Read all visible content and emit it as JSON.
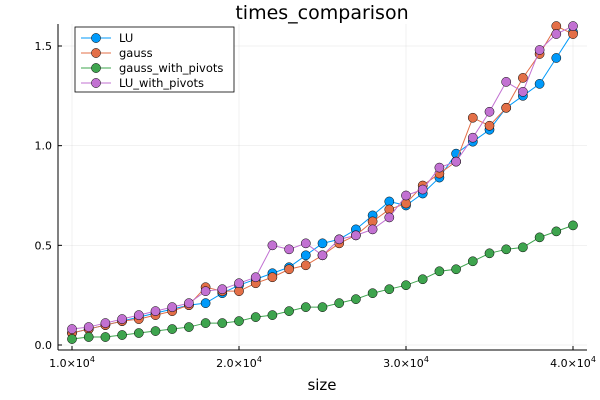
{
  "chart_data": {
    "type": "line",
    "title": "times_comparison",
    "xlabel": "size",
    "ylabel": "",
    "xlim": [
      10000,
      40000
    ],
    "ylim": [
      0,
      1.6
    ],
    "grid": true,
    "legend_position": "top-left",
    "x_ticks": [
      {
        "value": 10000,
        "mantissa": "1.0×10",
        "exp": "4"
      },
      {
        "value": 20000,
        "mantissa": "2.0×10",
        "exp": "4"
      },
      {
        "value": 30000,
        "mantissa": "3.0×10",
        "exp": "4"
      },
      {
        "value": 40000,
        "mantissa": "4.0×10",
        "exp": "4"
      }
    ],
    "y_ticks": [
      {
        "value": 0.0,
        "label": "0.0"
      },
      {
        "value": 0.5,
        "label": "0.5"
      },
      {
        "value": 1.0,
        "label": "1.0"
      },
      {
        "value": 1.5,
        "label": "1.5"
      }
    ],
    "x": [
      10000,
      11000,
      12000,
      13000,
      14000,
      15000,
      16000,
      17000,
      18000,
      19000,
      20000,
      21000,
      22000,
      23000,
      24000,
      25000,
      26000,
      27000,
      28000,
      29000,
      30000,
      31000,
      32000,
      33000,
      34000,
      35000,
      36000,
      37000,
      38000,
      39000,
      40000
    ],
    "series": [
      {
        "name": "LU",
        "color": "#009AFA",
        "values": [
          0.06,
          0.08,
          0.1,
          0.12,
          0.14,
          0.16,
          0.18,
          0.2,
          0.21,
          0.26,
          0.3,
          0.33,
          0.36,
          0.39,
          0.45,
          0.51,
          0.53,
          0.58,
          0.65,
          0.72,
          0.7,
          0.76,
          0.84,
          0.96,
          1.02,
          1.08,
          1.19,
          1.25,
          1.31,
          1.44,
          1.57
        ]
      },
      {
        "name": "gauss",
        "color": "#E36F47",
        "values": [
          0.06,
          0.08,
          0.1,
          0.12,
          0.13,
          0.15,
          0.17,
          0.2,
          0.29,
          0.27,
          0.27,
          0.31,
          0.34,
          0.38,
          0.4,
          0.45,
          0.51,
          0.55,
          0.62,
          0.68,
          0.71,
          0.8,
          0.86,
          0.92,
          1.14,
          1.1,
          1.19,
          1.34,
          1.46,
          1.6,
          1.56
        ]
      },
      {
        "name": "gauss_with_pivots",
        "color": "#3EA44E",
        "values": [
          0.03,
          0.04,
          0.04,
          0.05,
          0.06,
          0.07,
          0.08,
          0.09,
          0.11,
          0.11,
          0.12,
          0.14,
          0.15,
          0.17,
          0.19,
          0.19,
          0.21,
          0.23,
          0.26,
          0.28,
          0.3,
          0.33,
          0.37,
          0.38,
          0.42,
          0.46,
          0.48,
          0.49,
          0.54,
          0.57,
          0.6
        ]
      },
      {
        "name": "LU_with_pivots",
        "color": "#C271D2",
        "values": [
          0.08,
          0.09,
          0.11,
          0.13,
          0.15,
          0.17,
          0.19,
          0.21,
          0.27,
          0.28,
          0.31,
          0.34,
          0.5,
          0.48,
          0.51,
          0.45,
          0.53,
          0.55,
          0.58,
          0.64,
          0.75,
          0.78,
          0.89,
          0.92,
          1.04,
          1.17,
          1.32,
          1.27,
          1.48,
          1.56,
          1.6
        ]
      }
    ]
  }
}
